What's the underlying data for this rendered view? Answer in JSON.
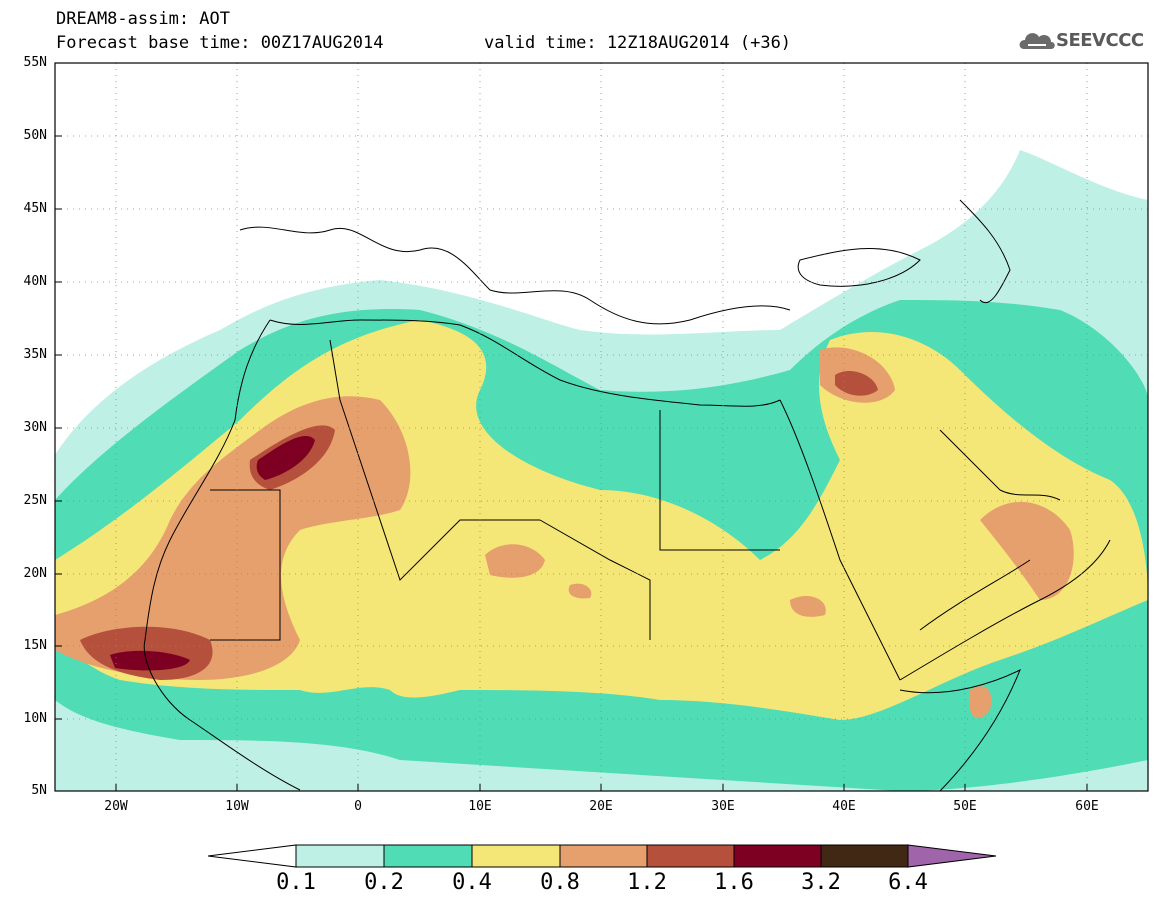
{
  "header": {
    "title": "DREAM8-assim: AOT",
    "base_time": "Forecast base time: 00Z17AUG2014",
    "valid_time": "valid time: 12Z18AUG2014 (+36)"
  },
  "logo": {
    "text": "SEEVCCC",
    "icon": "cloud-icon"
  },
  "axes": {
    "lat_labels": [
      "55N",
      "50N",
      "45N",
      "40N",
      "35N",
      "30N",
      "25N",
      "20N",
      "15N",
      "10N",
      "5N"
    ],
    "lon_labels": [
      "20W",
      "10W",
      "0",
      "10E",
      "20E",
      "30E",
      "40E",
      "50E",
      "60E"
    ]
  },
  "colorbar": {
    "labels": [
      "0.1",
      "0.2",
      "0.4",
      "0.8",
      "1.2",
      "1.6",
      "3.2",
      "6.4"
    ],
    "colors": [
      "#ffffff",
      "#bff0e6",
      "#50dcb4",
      "#f5e678",
      "#e6a06e",
      "#b4503c",
      "#7d0023",
      "#412814",
      "#a064aa"
    ]
  },
  "map": {
    "region": "North Africa, Middle East, Europe",
    "lat_range": [
      5,
      55
    ],
    "lon_range": [
      -25,
      65
    ],
    "grid": "dotted"
  }
}
